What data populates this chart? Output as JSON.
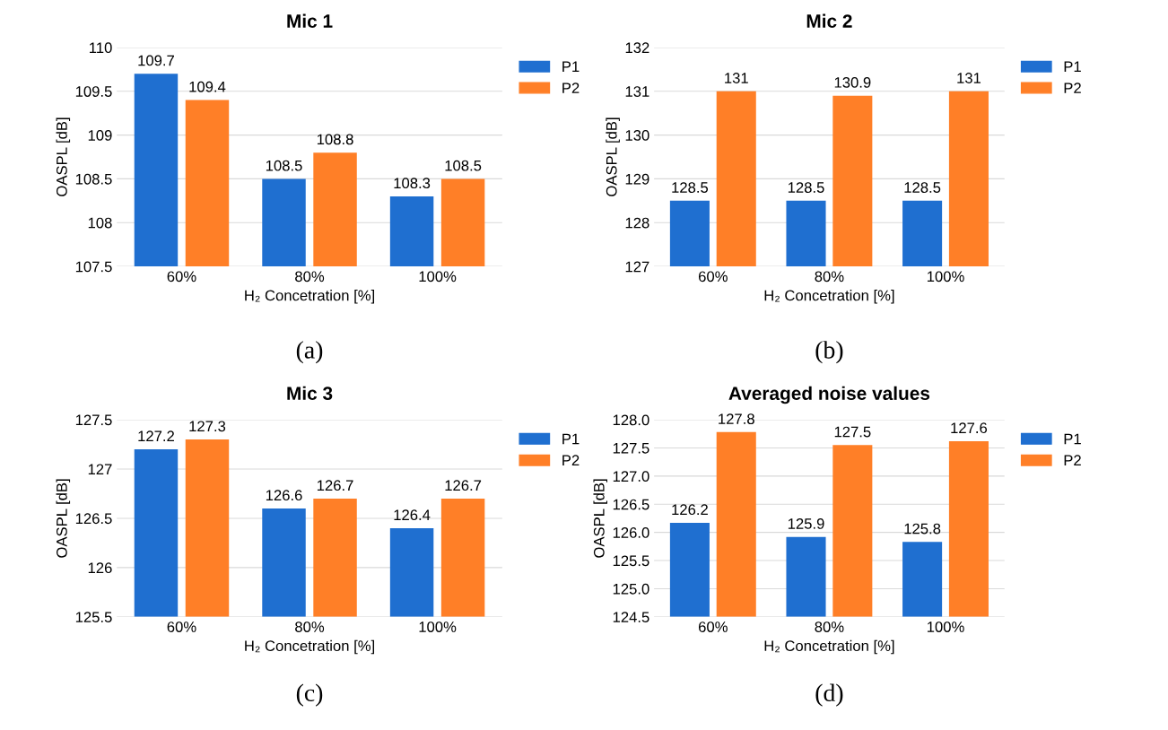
{
  "chart_data": [
    {
      "type": "bar",
      "title": "Mic 1",
      "xlabel": "H₂ Concetration [%]",
      "ylabel": "OASPL [dB]",
      "categories": [
        "60%",
        "80%",
        "100%"
      ],
      "series": [
        {
          "name": "P1",
          "color": "#1f6fd0",
          "values": [
            109.7,
            108.5,
            108.3
          ]
        },
        {
          "name": "P2",
          "color": "#ff7f27",
          "values": [
            109.4,
            108.8,
            108.5
          ]
        }
      ],
      "ylim": [
        107.5,
        110
      ],
      "yticks": [
        107.5,
        108,
        108.5,
        109,
        109.5,
        110
      ],
      "grid": "y",
      "legend": "top right",
      "data_labels": true,
      "annotations": [
        "(a)"
      ]
    },
    {
      "type": "bar",
      "title": "Mic 2",
      "xlabel": "H₂ Concetration [%]",
      "ylabel": "OASPL [dB]",
      "categories": [
        "60%",
        "80%",
        "100%"
      ],
      "series": [
        {
          "name": "P1",
          "color": "#1f6fd0",
          "values": [
            128.5,
            128.5,
            128.5
          ]
        },
        {
          "name": "P2",
          "color": "#ff7f27",
          "values": [
            131,
            130.9,
            131
          ]
        }
      ],
      "ylim": [
        127,
        132
      ],
      "yticks": [
        127,
        128,
        129,
        130,
        131,
        132
      ],
      "grid": "y",
      "legend": "top right",
      "data_labels": true,
      "annotations": [
        "(b)"
      ]
    },
    {
      "type": "bar",
      "title": "Mic 3",
      "xlabel": "H₂ Concetration [%]",
      "ylabel": "OASPL [dB]",
      "categories": [
        "60%",
        "80%",
        "100%"
      ],
      "series": [
        {
          "name": "P1",
          "color": "#1f6fd0",
          "values": [
            127.2,
            126.6,
            126.4
          ]
        },
        {
          "name": "P2",
          "color": "#ff7f27",
          "values": [
            127.3,
            126.7,
            126.7
          ]
        }
      ],
      "ylim": [
        125.5,
        127.5
      ],
      "yticks": [
        125.5,
        126,
        126.5,
        127,
        127.5
      ],
      "grid": "y",
      "legend": "top right",
      "data_labels": true,
      "annotations": [
        "(c)"
      ]
    },
    {
      "type": "bar",
      "title": "Averaged noise values",
      "xlabel": "H₂ Concetration [%]",
      "ylabel": "OASPL [dB]",
      "categories": [
        "60%",
        "80%",
        "100%"
      ],
      "series": [
        {
          "name": "P1",
          "color": "#1f6fd0",
          "values": [
            126.17,
            125.92,
            125.83
          ],
          "value_labels": [
            "126.2",
            "125.9",
            "125.8"
          ]
        },
        {
          "name": "P2",
          "color": "#ff7f27",
          "values": [
            127.78,
            127.55,
            127.62
          ],
          "value_labels": [
            "127.8",
            "127.5",
            "127.6"
          ]
        }
      ],
      "ylim": [
        124.5,
        128.0
      ],
      "yticks": [
        {
          "value": 124.5,
          "label": "124.5"
        },
        {
          "value": 125,
          "label": "125.0"
        },
        {
          "value": 125.5,
          "label": "125.5"
        },
        {
          "value": 126,
          "label": "126.0"
        },
        {
          "value": 126.5,
          "label": "126.5"
        },
        {
          "value": 127,
          "label": "127.0"
        },
        {
          "value": 127.5,
          "label": "127.5"
        },
        {
          "value": 128,
          "label": "128.0"
        }
      ],
      "grid": "y",
      "legend": "top right",
      "annotations": [
        "(d)"
      ]
    }
  ]
}
